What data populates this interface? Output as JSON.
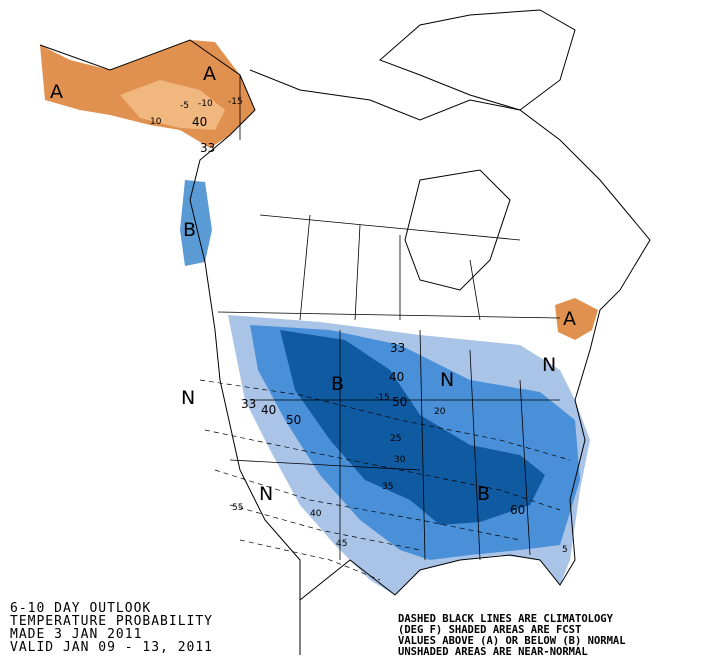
{
  "outlook": {
    "lines": [
      "6-10 DAY OUTLOOK",
      "TEMPERATURE PROBABILITY",
      "MADE  3 JAN 2011",
      "VALID  JAN 09 - 13, 2011"
    ]
  },
  "legend": {
    "lines": [
      "DASHED BLACK LINES ARE CLIMATOLOGY",
      "(DEG F) SHADED AREAS ARE FCST",
      "VALUES ABOVE (A) OR BELOW (B) NORMAL",
      "UNSHADED AREAS ARE NEAR-NORMAL"
    ]
  },
  "map": {
    "category_labels": [
      "A",
      "A",
      "A",
      "B",
      "B",
      "B",
      "N",
      "N",
      "N",
      "N"
    ],
    "probability_labels": [
      "40",
      "33",
      "33",
      "40",
      "50",
      "33",
      "40",
      "50",
      "60"
    ],
    "climatology_labels": [
      "-15",
      "-10",
      "-5",
      "10",
      "-15",
      "20",
      "25",
      "30",
      "35",
      "40",
      "45",
      "55",
      "5"
    ]
  }
}
